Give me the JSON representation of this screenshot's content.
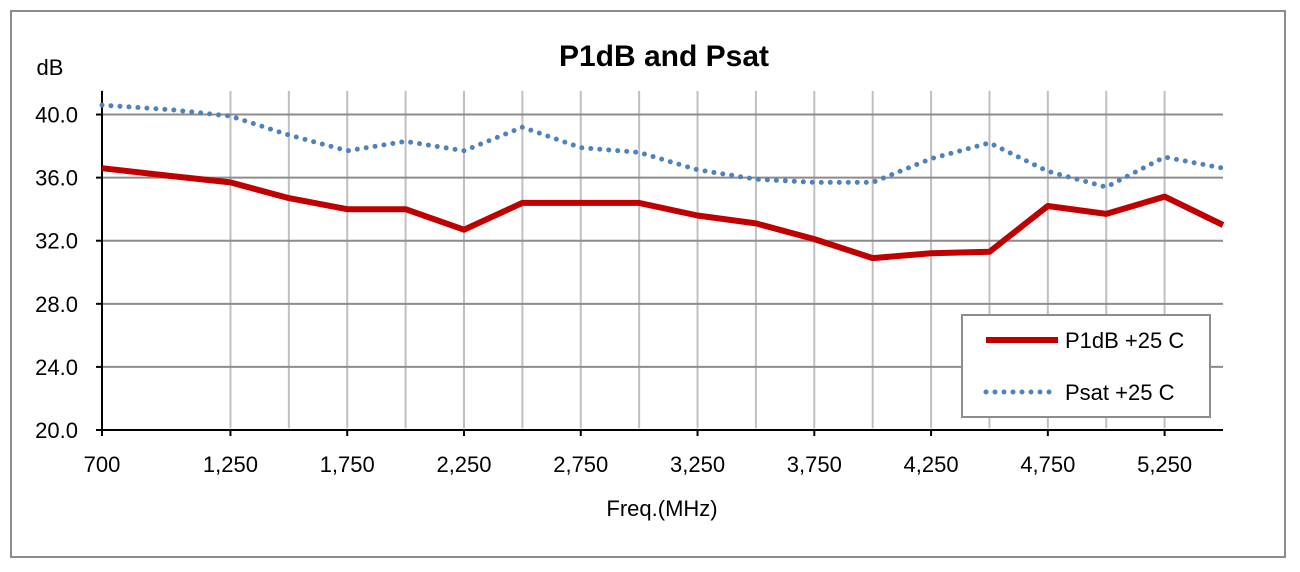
{
  "chart_data": {
    "type": "line",
    "title": "P1dB and Psat",
    "ylabel": "dB",
    "xlabel": "Freq.(MHz)",
    "xlim": [
      700,
      5500
    ],
    "ylim": [
      20,
      42
    ],
    "x_ticks": [
      700,
      1250,
      1750,
      2250,
      2750,
      3250,
      3750,
      4250,
      4750,
      5250
    ],
    "x_tick_labels": [
      "700",
      "1,250",
      "1,750",
      "2,250",
      "2,750",
      "3,250",
      "3,750",
      "4,250",
      "4,750",
      "5,250"
    ],
    "x_gridlines": [
      1250,
      1500,
      1750,
      2000,
      2250,
      2500,
      2750,
      3000,
      3250,
      3500,
      3750,
      4000,
      4250,
      4500,
      4750,
      5000,
      5250
    ],
    "y_ticks": [
      20,
      24,
      28,
      32,
      36,
      40
    ],
    "y_tick_labels": [
      "20.0",
      "24.0",
      "28.0",
      "32.0",
      "36.0",
      "40.0"
    ],
    "grid": true,
    "legend_position": "bottom-right",
    "series": [
      {
        "name": "P1dB +25 C",
        "color": "#c00000",
        "style": "solid",
        "x": [
          700,
          1000,
          1250,
          1500,
          1750,
          2000,
          2250,
          2500,
          2750,
          3000,
          3250,
          3500,
          3750,
          4000,
          4250,
          4500,
          4750,
          5000,
          5250,
          5500
        ],
        "values": [
          36.6,
          36.1,
          35.7,
          34.7,
          34.0,
          34.0,
          32.7,
          34.4,
          34.4,
          34.4,
          33.6,
          33.1,
          32.1,
          30.9,
          31.2,
          31.3,
          34.2,
          33.7,
          34.8,
          33.0
        ]
      },
      {
        "name": "Psat +25 C",
        "color": "#4f81bd",
        "style": "dotted",
        "x": [
          700,
          1000,
          1250,
          1500,
          1750,
          2000,
          2250,
          2500,
          2750,
          3000,
          3250,
          3500,
          3750,
          4000,
          4250,
          4500,
          4750,
          5000,
          5250,
          5500
        ],
        "values": [
          40.6,
          40.3,
          39.9,
          38.7,
          37.7,
          38.3,
          37.7,
          39.2,
          37.9,
          37.6,
          36.5,
          35.9,
          35.7,
          35.7,
          37.2,
          38.2,
          36.4,
          35.4,
          37.3,
          36.6
        ]
      }
    ]
  }
}
